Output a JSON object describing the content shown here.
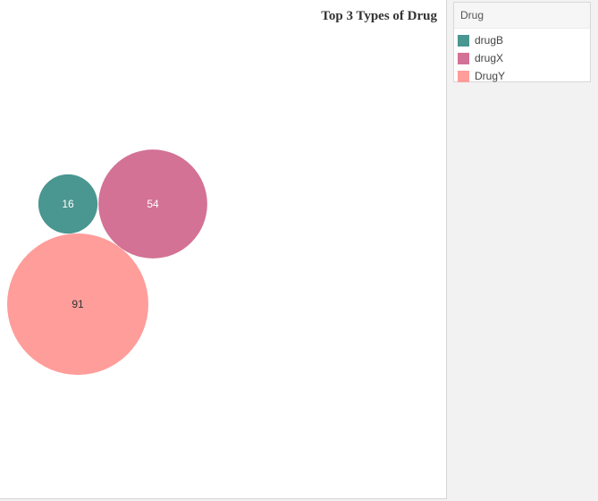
{
  "chart_data": {
    "type": "bubble",
    "title": "Top 3 Types of Drug",
    "legend": {
      "title": "Drug",
      "placement": "right"
    },
    "series": [
      {
        "name": "drugB",
        "value": 16,
        "color": "#4a9690",
        "label_color": "#ffffff"
      },
      {
        "name": "drugX",
        "value": 54,
        "color": "#d37295",
        "label_color": "#ffffff"
      },
      {
        "name": "DrugY",
        "value": 91,
        "color": "#ff9d9a",
        "label_color": "#333333"
      }
    ]
  }
}
